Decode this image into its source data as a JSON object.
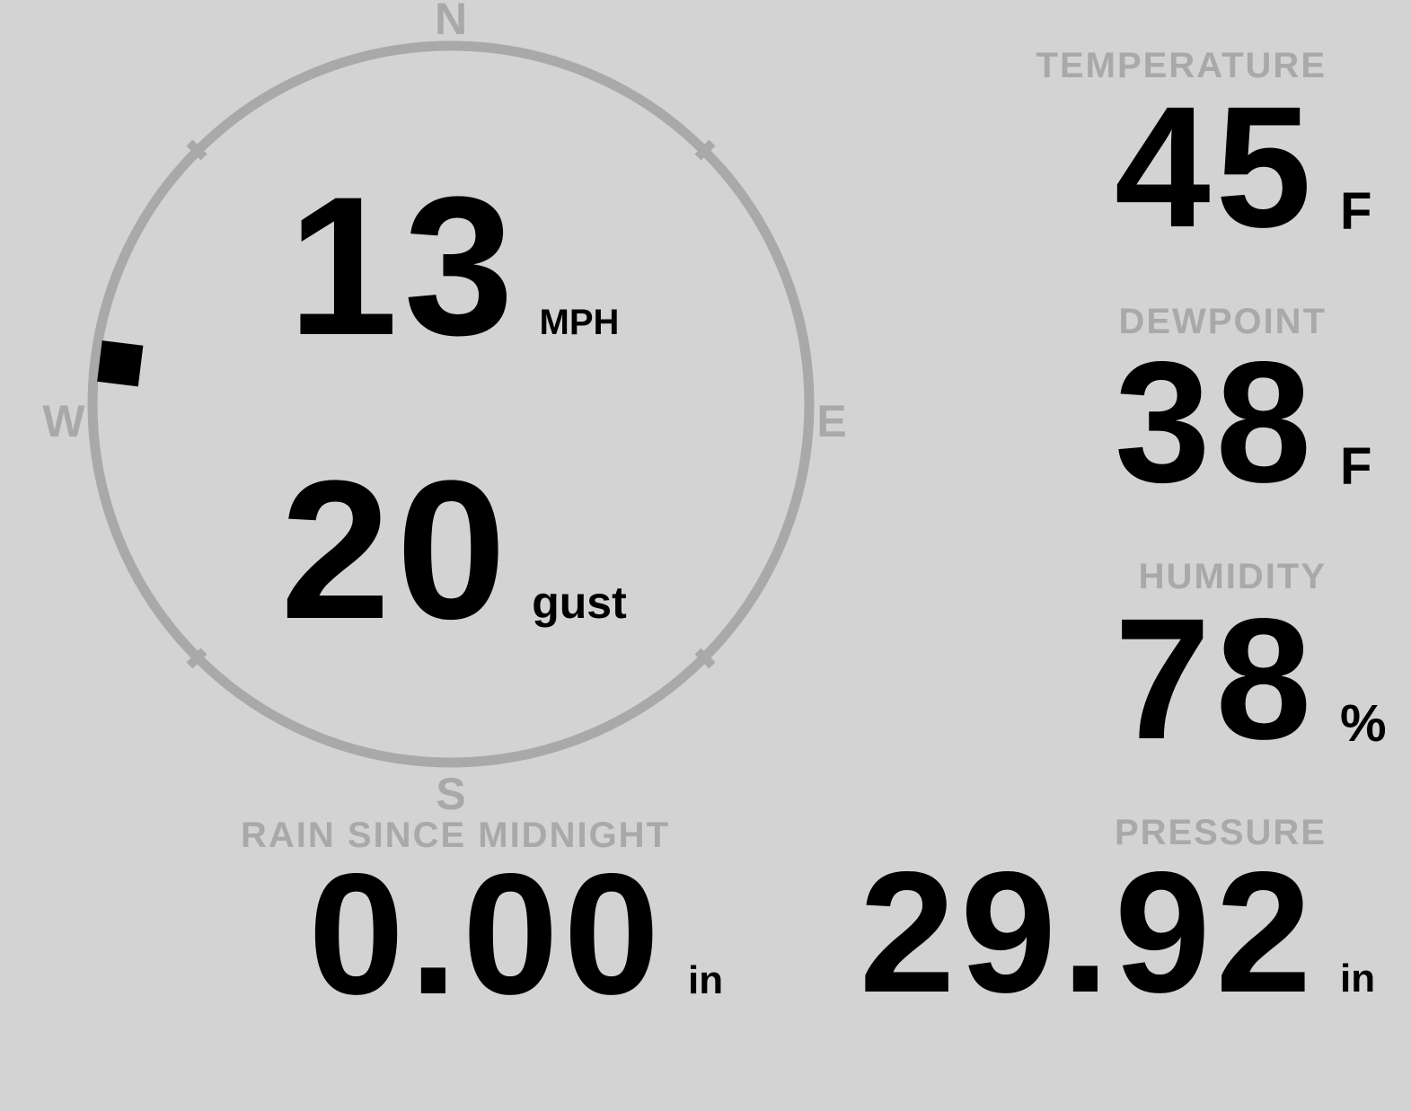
{
  "theme": {
    "background_color": "#d3d3d3",
    "muted_color": "#a9a9a9",
    "text_color": "#000000"
  },
  "wind": {
    "speed": "13",
    "speed_unit": "MPH",
    "gust": "20",
    "gust_unit": "gust",
    "direction_degrees": 277,
    "compass_labels": {
      "north": "N",
      "east": "E",
      "south": "S",
      "west": "W"
    }
  },
  "metrics": {
    "temperature": {
      "label": "TEMPERATURE",
      "value": "45",
      "unit": "F"
    },
    "dewpoint": {
      "label": "DEWPOINT",
      "value": "38",
      "unit": "F"
    },
    "humidity": {
      "label": "HUMIDITY",
      "value": "78",
      "unit": "%"
    },
    "rain_since_midnight": {
      "label": "RAIN SINCE MIDNIGHT",
      "value": "0.00",
      "unit": "in"
    },
    "pressure": {
      "label": "PRESSURE",
      "value": "29.92",
      "unit": "in"
    }
  }
}
